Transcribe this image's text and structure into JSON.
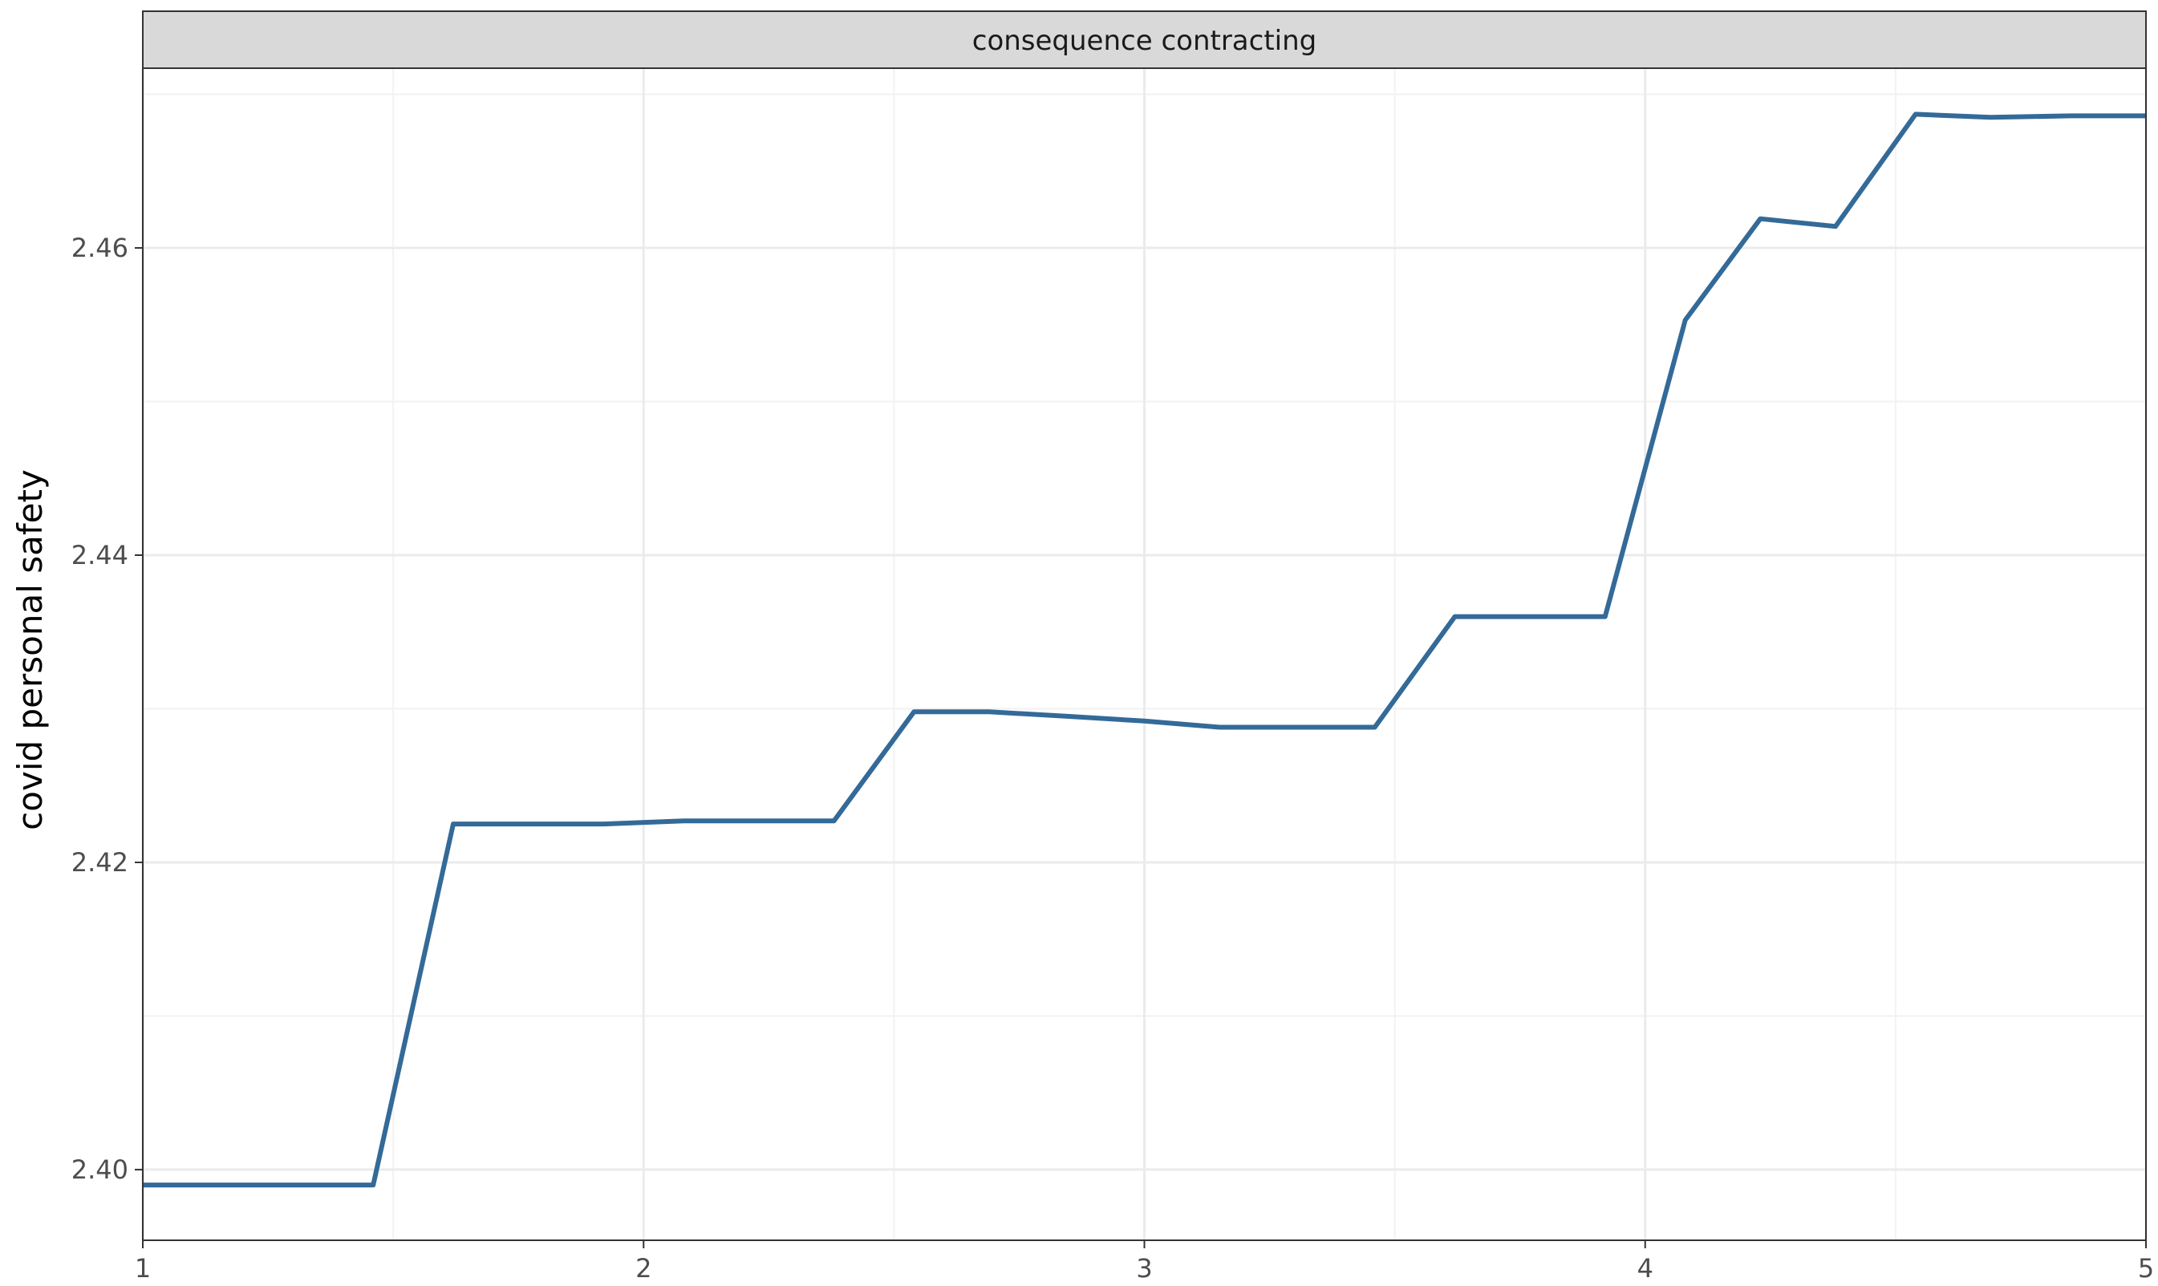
{
  "chart_data": {
    "type": "line",
    "facet_label": "consequence contracting",
    "title": "",
    "xlabel": "",
    "ylabel": "covid personal safety",
    "xlim": [
      1,
      5
    ],
    "ylim": [
      2.3954,
      2.4717
    ],
    "x_ticks": [
      1,
      2,
      3,
      4,
      5
    ],
    "x_tick_labels": [
      "1",
      "2",
      "3",
      "4",
      "5"
    ],
    "y_ticks": [
      2.4,
      2.42,
      2.44,
      2.46
    ],
    "y_tick_labels": [
      "2.40",
      "2.42",
      "2.44",
      "2.46"
    ],
    "grid": true,
    "series": [
      {
        "name": "covid personal safety",
        "color": "#336a98",
        "x": [
          1.0,
          1.46,
          1.62,
          1.92,
          2.08,
          2.38,
          2.54,
          2.69,
          2.85,
          3.0,
          3.15,
          3.46,
          3.62,
          3.77,
          3.92,
          4.08,
          4.23,
          4.38,
          4.54,
          4.69,
          4.85,
          5.0
        ],
        "y": [
          2.399,
          2.399,
          2.4225,
          2.4225,
          2.4227,
          2.4227,
          2.4298,
          2.4298,
          2.4295,
          2.4292,
          2.4288,
          2.4288,
          2.436,
          2.436,
          2.436,
          2.4553,
          2.4619,
          2.4614,
          2.4687,
          2.4685,
          2.4686,
          2.4686
        ]
      }
    ]
  },
  "colors": {
    "line": "#336a98",
    "strip_background": "#d9d9d9",
    "grid_major": "#ebebeb",
    "grid_minor": "#f2f2f2",
    "axis": "#333333"
  }
}
